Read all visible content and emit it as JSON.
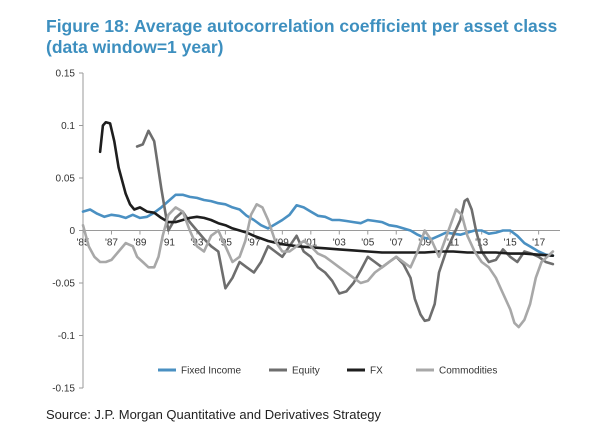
{
  "title": "Figure 18: Average autocorrelation coefficient per asset class (data window=1 year)",
  "source": "Source: J.P. Morgan Quantitative and Derivatives Strategy",
  "chart_data": {
    "type": "line",
    "xlabel": "",
    "ylabel": "",
    "xlim": [
      1985,
      2018.5
    ],
    "ylim": [
      -0.15,
      0.15
    ],
    "y_ticks": [
      0.15,
      0.1,
      0.05,
      0,
      -0.05,
      -0.1,
      -0.15
    ],
    "y_tick_labels": [
      "0.15",
      "0.1",
      "0.05",
      "0",
      "-0.05",
      "-0.1",
      "-0.15"
    ],
    "x_ticks": [
      1985,
      1987,
      1989,
      1991,
      1993,
      1995,
      1997,
      1999,
      2001,
      2003,
      2005,
      2007,
      2009,
      2011,
      2013,
      2015,
      2017
    ],
    "x_tick_labels": [
      "'85",
      "'87",
      "'89",
      "'91",
      "'93",
      "'95",
      "'97",
      "'99",
      "'01",
      "'03",
      "'05",
      "'07",
      "'09",
      "'11",
      "'13",
      "'15",
      "'17"
    ],
    "grid": false,
    "legend_position": "bottom",
    "series": [
      {
        "name": "Fixed Income",
        "color": "#4a90c2",
        "x": [
          1985.0,
          1985.5,
          1986.0,
          1986.5,
          1987.0,
          1987.5,
          1988.0,
          1988.5,
          1989.0,
          1989.5,
          1990.0,
          1990.5,
          1991.0,
          1991.5,
          1992.0,
          1992.5,
          1993.0,
          1993.5,
          1994.0,
          1994.5,
          1995.0,
          1995.5,
          1996.0,
          1996.5,
          1997.0,
          1997.5,
          1998.0,
          1998.5,
          1999.0,
          1999.5,
          2000.0,
          2000.5,
          2001.0,
          2001.5,
          2002.0,
          2002.5,
          2003.0,
          2003.5,
          2004.0,
          2004.5,
          2005.0,
          2005.5,
          2006.0,
          2006.5,
          2007.0,
          2007.5,
          2008.0,
          2008.5,
          2009.0,
          2009.5,
          2010.0,
          2010.5,
          2011.0,
          2011.5,
          2012.0,
          2012.5,
          2013.0,
          2013.5,
          2014.0,
          2014.5,
          2015.0,
          2015.5,
          2016.0,
          2016.5,
          2017.0,
          2017.5,
          2018.0
        ],
        "values": [
          0.018,
          0.02,
          0.016,
          0.013,
          0.015,
          0.014,
          0.012,
          0.015,
          0.012,
          0.013,
          0.017,
          0.022,
          0.028,
          0.034,
          0.034,
          0.032,
          0.031,
          0.029,
          0.028,
          0.026,
          0.025,
          0.022,
          0.02,
          0.014,
          0.01,
          0.005,
          0.002,
          0.006,
          0.01,
          0.015,
          0.024,
          0.022,
          0.018,
          0.014,
          0.013,
          0.01,
          0.01,
          0.009,
          0.008,
          0.007,
          0.01,
          0.009,
          0.008,
          0.005,
          0.004,
          0.002,
          0.0,
          -0.004,
          -0.007,
          -0.008,
          -0.005,
          -0.002,
          -0.003,
          -0.004,
          -0.002,
          0.0,
          0.0,
          -0.003,
          -0.002,
          0.0,
          0.0,
          -0.005,
          -0.012,
          -0.016,
          -0.02,
          -0.023,
          -0.024
        ]
      },
      {
        "name": "Equity",
        "color": "#6e6e6e",
        "x": [
          1988.8,
          1989.2,
          1989.6,
          1990.0,
          1990.5,
          1991.0,
          1991.5,
          1992.0,
          1992.5,
          1993.0,
          1993.5,
          1994.0,
          1994.5,
          1995.0,
          1995.5,
          1996.0,
          1996.5,
          1997.0,
          1997.5,
          1998.0,
          1998.5,
          1999.0,
          1999.5,
          2000.0,
          2000.5,
          2001.0,
          2001.5,
          2002.0,
          2002.5,
          2003.0,
          2003.5,
          2004.0,
          2004.5,
          2005.0,
          2005.5,
          2006.0,
          2006.5,
          2007.0,
          2007.5,
          2008.0,
          2008.3,
          2008.7,
          2009.0,
          2009.3,
          2009.7,
          2010.0,
          2010.5,
          2011.0,
          2011.5,
          2011.8,
          2012.0,
          2012.3,
          2012.6,
          2013.0,
          2013.5,
          2014.0,
          2014.5,
          2015.0,
          2015.5,
          2016.0,
          2016.5,
          2017.0,
          2017.5,
          2018.0
        ],
        "values": [
          0.08,
          0.082,
          0.095,
          0.085,
          0.04,
          0.0,
          0.012,
          0.018,
          0.008,
          0.0,
          -0.008,
          -0.015,
          -0.02,
          -0.055,
          -0.045,
          -0.03,
          -0.035,
          -0.04,
          -0.03,
          -0.015,
          -0.02,
          -0.025,
          -0.015,
          -0.005,
          -0.02,
          -0.025,
          -0.035,
          -0.04,
          -0.048,
          -0.06,
          -0.058,
          -0.05,
          -0.038,
          -0.025,
          -0.03,
          -0.035,
          -0.03,
          -0.025,
          -0.032,
          -0.045,
          -0.065,
          -0.08,
          -0.086,
          -0.085,
          -0.07,
          -0.04,
          -0.02,
          -0.005,
          0.01,
          0.028,
          0.03,
          0.02,
          0.0,
          -0.02,
          -0.03,
          -0.028,
          -0.018,
          -0.025,
          -0.03,
          -0.02,
          -0.022,
          -0.025,
          -0.03,
          -0.032
        ]
      },
      {
        "name": "FX",
        "color": "#1e1e1e",
        "x": [
          1986.2,
          1986.4,
          1986.6,
          1986.9,
          1987.2,
          1987.5,
          1988.0,
          1988.3,
          1988.6,
          1989.0,
          1989.5,
          1990.0,
          1990.5,
          1991.0,
          1991.5,
          1992.0,
          1992.5,
          1993.0,
          1993.5,
          1994.0,
          1994.5,
          1995.0,
          1995.5,
          1996.0,
          1996.5,
          1997.0,
          1998.0,
          1999.0,
          2000.0,
          2001.0,
          2002.0,
          2003.0,
          2004.0,
          2005.0,
          2006.0,
          2007.0,
          2008.0,
          2009.0,
          2010.0,
          2011.0,
          2012.0,
          2013.0,
          2014.0,
          2015.0,
          2016.0,
          2017.0,
          2018.0
        ],
        "values": [
          0.075,
          0.1,
          0.103,
          0.102,
          0.085,
          0.06,
          0.035,
          0.025,
          0.02,
          0.022,
          0.018,
          0.017,
          0.012,
          0.008,
          0.008,
          0.01,
          0.012,
          0.013,
          0.012,
          0.01,
          0.007,
          0.005,
          0.002,
          0.0,
          -0.002,
          -0.005,
          -0.01,
          -0.013,
          -0.015,
          -0.016,
          -0.017,
          -0.018,
          -0.019,
          -0.02,
          -0.021,
          -0.021,
          -0.021,
          -0.021,
          -0.02,
          -0.02,
          -0.021,
          -0.021,
          -0.021,
          -0.022,
          -0.022,
          -0.023,
          -0.024
        ]
      },
      {
        "name": "Commodities",
        "color": "#a8a8a8",
        "x": [
          1985.0,
          1985.4,
          1985.8,
          1986.2,
          1986.6,
          1987.0,
          1987.5,
          1988.0,
          1988.5,
          1988.8,
          1989.2,
          1989.6,
          1990.0,
          1990.3,
          1990.6,
          1991.0,
          1991.5,
          1992.0,
          1992.5,
          1993.0,
          1993.5,
          1994.0,
          1994.5,
          1995.0,
          1995.5,
          1996.0,
          1996.4,
          1996.8,
          1997.2,
          1997.6,
          1998.0,
          1998.5,
          1999.0,
          1999.5,
          2000.0,
          2000.5,
          2001.0,
          2001.5,
          2002.0,
          2002.5,
          2003.0,
          2003.5,
          2004.0,
          2004.5,
          2005.0,
          2005.5,
          2006.0,
          2006.5,
          2007.0,
          2007.5,
          2008.0,
          2008.5,
          2009.0,
          2009.5,
          2010.0,
          2010.4,
          2010.8,
          2011.2,
          2011.6,
          2012.0,
          2012.5,
          2013.0,
          2013.5,
          2014.0,
          2014.5,
          2015.0,
          2015.3,
          2015.6,
          2016.0,
          2016.4,
          2016.8,
          2017.2,
          2017.6,
          2018.0
        ],
        "values": [
          0.005,
          -0.015,
          -0.025,
          -0.03,
          -0.03,
          -0.028,
          -0.02,
          -0.012,
          -0.015,
          -0.025,
          -0.03,
          -0.035,
          -0.035,
          -0.025,
          -0.005,
          0.015,
          0.022,
          0.018,
          0.0,
          -0.015,
          -0.02,
          -0.005,
          0.0,
          -0.015,
          -0.03,
          -0.025,
          -0.01,
          0.015,
          0.025,
          0.022,
          0.01,
          -0.01,
          -0.02,
          -0.02,
          -0.015,
          -0.01,
          -0.015,
          -0.022,
          -0.025,
          -0.03,
          -0.035,
          -0.04,
          -0.045,
          -0.05,
          -0.048,
          -0.04,
          -0.035,
          -0.03,
          -0.025,
          -0.03,
          -0.035,
          -0.02,
          0.0,
          -0.01,
          -0.025,
          -0.01,
          0.005,
          0.02,
          0.015,
          -0.005,
          -0.02,
          -0.03,
          -0.035,
          -0.045,
          -0.06,
          -0.075,
          -0.088,
          -0.092,
          -0.085,
          -0.07,
          -0.045,
          -0.03,
          -0.025,
          -0.02
        ]
      }
    ]
  }
}
